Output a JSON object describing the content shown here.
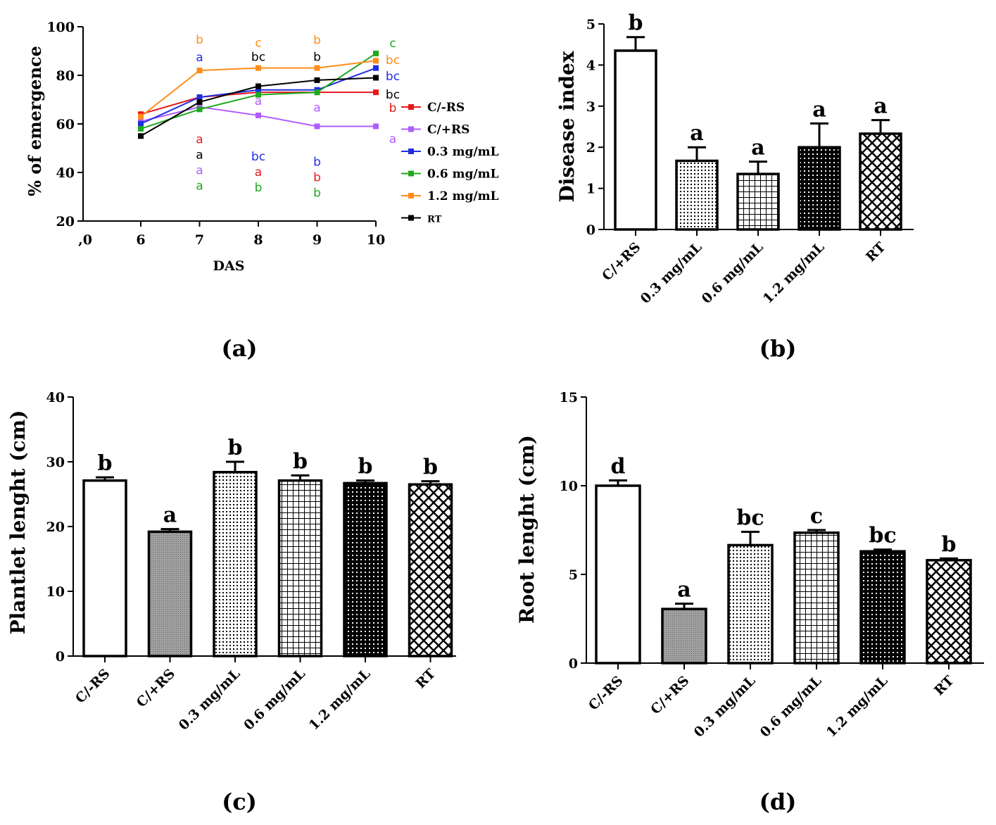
{
  "colors": {
    "C/-RS": "#e41a1c",
    "C/+RS": "#b05cff",
    "0.3 mg/mL": "#1f2fe0",
    "0.6 mg/mL": "#1ea81e",
    "1.2 mg/mL": "#ff8c1a",
    "RT": "#000000"
  },
  "chart_data": [
    {
      "id": "a",
      "type": "line",
      "panel_label": "(a)",
      "xlabel": "DAS",
      "ylabel": "% of emergence",
      "x_origin_label": ",0",
      "x": [
        6,
        7,
        8,
        9,
        10
      ],
      "xticks": [
        "6",
        "7",
        "8",
        "9",
        "10"
      ],
      "ylim": [
        20,
        100
      ],
      "yticks": [
        "20",
        "40",
        "60",
        "80",
        "100"
      ],
      "legend_position": "right",
      "series": [
        {
          "name": "C/-RS",
          "values": [
            64,
            71,
            73,
            73,
            73
          ],
          "letters": [
            "",
            "a",
            "a",
            "b",
            "b"
          ]
        },
        {
          "name": "C/+RS",
          "values": [
            61,
            67,
            63.5,
            59,
            59
          ],
          "letters": [
            "",
            "a",
            "a",
            "a",
            "a"
          ]
        },
        {
          "name": "0.3 mg/mL",
          "values": [
            60,
            71,
            74,
            74,
            83
          ],
          "letters": [
            "",
            "a",
            "bc",
            "b",
            "bc"
          ]
        },
        {
          "name": "0.6 mg/mL",
          "values": [
            58,
            66,
            72,
            73,
            89
          ],
          "letters": [
            "",
            "a",
            "b",
            "b",
            "c"
          ]
        },
        {
          "name": "1.2 mg/mL",
          "values": [
            63,
            82,
            83,
            83,
            86
          ],
          "letters": [
            "",
            "b",
            "c",
            "b",
            "bc"
          ]
        },
        {
          "name": "RT",
          "values": [
            55,
            69,
            75.5,
            78,
            79
          ],
          "letters": [
            "",
            "a",
            "bc",
            "b",
            "bc"
          ]
        }
      ]
    },
    {
      "id": "b",
      "type": "bar",
      "panel_label": "(b)",
      "ylabel": "Disease index",
      "ylim": [
        0,
        5
      ],
      "yticks": [
        "0",
        "1",
        "2",
        "3",
        "4",
        "5"
      ],
      "categories": [
        "C/+RS",
        "0.3 mg/mL",
        "0.6 mg/mL",
        "1.2 mg/mL",
        "RT"
      ],
      "values": [
        4.35,
        1.67,
        1.35,
        2.0,
        2.33
      ],
      "errors": [
        0.33,
        0.33,
        0.3,
        0.58,
        0.33
      ],
      "letters": [
        "b",
        "a",
        "a",
        "a",
        "a"
      ],
      "patterns": [
        "white",
        "dots",
        "grid",
        "dense",
        "cross"
      ]
    },
    {
      "id": "c",
      "type": "bar",
      "panel_label": "(c)",
      "ylabel": "Plantlet lenght (cm)",
      "ylim": [
        0,
        40
      ],
      "yticks": [
        "0",
        "10",
        "20",
        "30",
        "40"
      ],
      "categories": [
        "C/-RS",
        "C/+RS",
        "0.3 mg/mL",
        "0.6 mg/mL",
        "1.2 mg/mL",
        "RT"
      ],
      "values": [
        27.1,
        19.2,
        28.4,
        27.1,
        26.7,
        26.5
      ],
      "errors": [
        0.5,
        0.4,
        1.6,
        0.8,
        0.4,
        0.5
      ],
      "letters": [
        "b",
        "a",
        "b",
        "b",
        "b",
        "b"
      ],
      "patterns": [
        "white",
        "gray",
        "dots",
        "grid",
        "dense",
        "cross"
      ]
    },
    {
      "id": "d",
      "type": "bar",
      "panel_label": "(d)",
      "ylabel": "Root lenght (cm)",
      "ylim": [
        0,
        15
      ],
      "yticks": [
        "0",
        "5",
        "10",
        "15"
      ],
      "categories": [
        "C/-RS",
        "C/+RS",
        "0.3 mg/mL",
        "0.6 mg/mL",
        "1.2 mg/mL",
        "RT"
      ],
      "values": [
        10.0,
        3.05,
        6.65,
        7.35,
        6.3,
        5.8
      ],
      "errors": [
        0.3,
        0.3,
        0.75,
        0.15,
        0.1,
        0.1
      ],
      "letters": [
        "d",
        "a",
        "bc",
        "c",
        "bc",
        "b"
      ],
      "patterns": [
        "white",
        "gray",
        "dots",
        "grid",
        "dense",
        "cross"
      ]
    }
  ]
}
